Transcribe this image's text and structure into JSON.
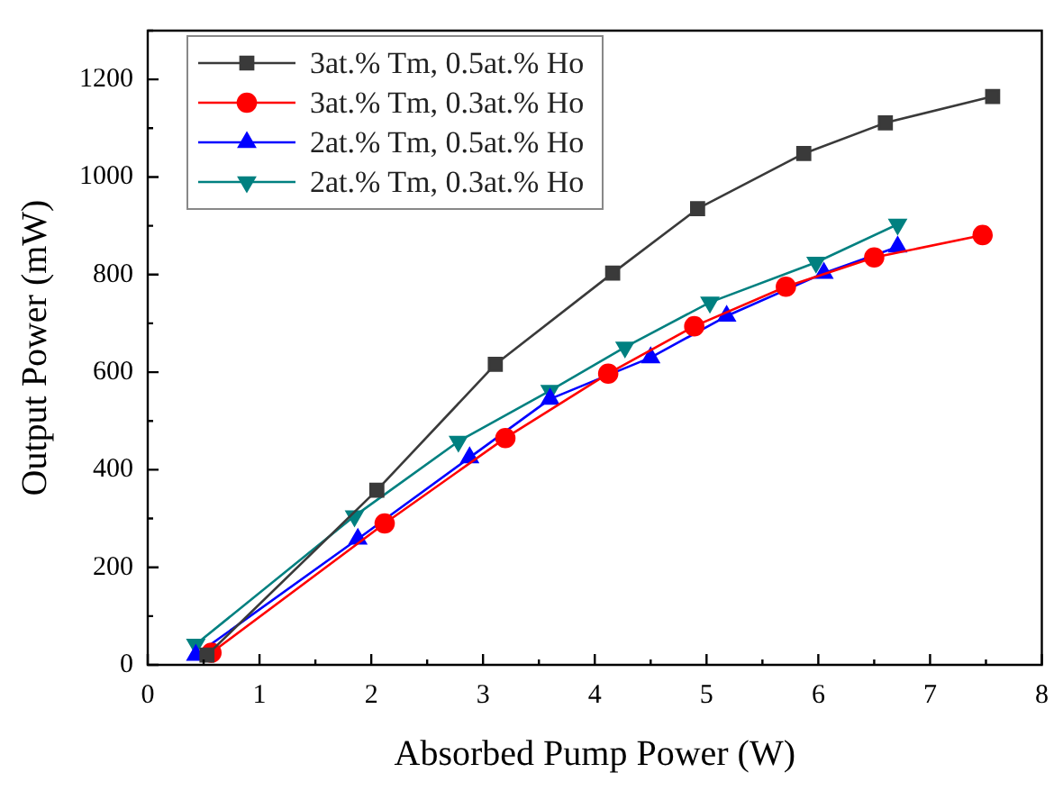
{
  "chart_data": {
    "type": "line",
    "xlabel": "Absorbed Pump Power (W)",
    "ylabel": "Output Power (mW)",
    "xlim": [
      0,
      8
    ],
    "xticks": [
      0,
      1,
      2,
      3,
      4,
      5,
      6,
      7,
      8
    ],
    "ylim": [
      0,
      1300
    ],
    "yticks": [
      0,
      200,
      400,
      600,
      800,
      1000,
      1200
    ],
    "grid": false,
    "legend": "top left",
    "series": [
      {
        "name": "3at.% Tm, 0.5at.% Ho",
        "color": "#3a3a3a",
        "marker": "square",
        "x": [
          0.53,
          2.05,
          3.11,
          4.16,
          4.92,
          5.87,
          6.6,
          7.56
        ],
        "values": [
          20,
          358,
          616,
          803,
          935,
          1048,
          1111,
          1165
        ]
      },
      {
        "name": "3at.% Tm, 0.3at.% Ho",
        "color": "#ff0000",
        "marker": "circle",
        "x": [
          0.57,
          2.12,
          3.2,
          4.12,
          4.89,
          5.71,
          6.5,
          7.47
        ],
        "values": [
          25,
          290,
          465,
          597,
          694,
          775,
          835,
          881
        ]
      },
      {
        "name": "2at.% Tm, 0.5at.% Ho",
        "color": "#0000ff",
        "marker": "triangle",
        "x": [
          0.43,
          1.88,
          2.88,
          3.6,
          4.5,
          5.18,
          6.05,
          6.71
        ],
        "values": [
          20,
          258,
          425,
          545,
          630,
          715,
          803,
          857
        ]
      },
      {
        "name": "2at.% Tm, 0.3at.% Ho",
        "color": "#008080",
        "marker": "triangle-down",
        "x": [
          0.43,
          1.85,
          2.78,
          3.6,
          4.27,
          5.03,
          5.98,
          6.71
        ],
        "values": [
          42,
          305,
          458,
          562,
          651,
          743,
          825,
          903
        ]
      }
    ]
  }
}
